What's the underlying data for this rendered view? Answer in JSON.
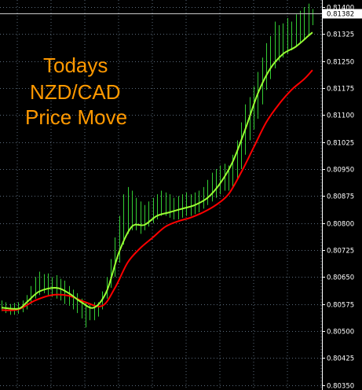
{
  "chart_data": {
    "type": "line",
    "title_lines": [
      "Todays",
      "NZD/CAD",
      "Price Move"
    ],
    "y_ticks": [
      "0.81400",
      "0.81325",
      "0.81250",
      "0.81175",
      "0.81100",
      "0.81025",
      "0.80950",
      "0.80875",
      "0.80800",
      "0.80725",
      "0.80650",
      "0.80575",
      "0.80500",
      "0.80425",
      "0.80350"
    ],
    "ylim": [
      0.80336,
      0.8142
    ],
    "current_price": "0.81382",
    "grid": true,
    "colors": {
      "bars": "#33cc33",
      "fast_ma": "#99ff33",
      "slow_ma": "#ff0000",
      "grid": "#5a6a7a",
      "title": "#ff9900",
      "current_line": "#c8c8c8"
    },
    "bar_count": 75,
    "bars": [
      {
        "h": 0.80585,
        "l": 0.80555
      },
      {
        "h": 0.8058,
        "l": 0.8055
      },
      {
        "h": 0.80575,
        "l": 0.80545
      },
      {
        "h": 0.80578,
        "l": 0.80545
      },
      {
        "h": 0.8058,
        "l": 0.80548
      },
      {
        "h": 0.80585,
        "l": 0.80552
      },
      {
        "h": 0.806,
        "l": 0.8056
      },
      {
        "h": 0.80625,
        "l": 0.80575
      },
      {
        "h": 0.8065,
        "l": 0.8059
      },
      {
        "h": 0.80665,
        "l": 0.806
      },
      {
        "h": 0.80658,
        "l": 0.80605
      },
      {
        "h": 0.8066,
        "l": 0.806
      },
      {
        "h": 0.8065,
        "l": 0.80595
      },
      {
        "h": 0.80655,
        "l": 0.8059
      },
      {
        "h": 0.80645,
        "l": 0.80585
      },
      {
        "h": 0.8064,
        "l": 0.80575
      },
      {
        "h": 0.80625,
        "l": 0.8057
      },
      {
        "h": 0.80615,
        "l": 0.8056
      },
      {
        "h": 0.80605,
        "l": 0.8055
      },
      {
        "h": 0.8059,
        "l": 0.80535
      },
      {
        "h": 0.8058,
        "l": 0.8051
      },
      {
        "h": 0.80575,
        "l": 0.8053
      },
      {
        "h": 0.8058,
        "l": 0.8053
      },
      {
        "h": 0.8058,
        "l": 0.8054
      },
      {
        "h": 0.8061,
        "l": 0.8056
      },
      {
        "h": 0.8065,
        "l": 0.8059
      },
      {
        "h": 0.807,
        "l": 0.8062
      },
      {
        "h": 0.8076,
        "l": 0.8065
      },
      {
        "h": 0.8082,
        "l": 0.8069
      },
      {
        "h": 0.8088,
        "l": 0.8074
      },
      {
        "h": 0.809,
        "l": 0.8077
      },
      {
        "h": 0.8089,
        "l": 0.8078
      },
      {
        "h": 0.8087,
        "l": 0.8078
      },
      {
        "h": 0.8086,
        "l": 0.8077
      },
      {
        "h": 0.8085,
        "l": 0.8078
      },
      {
        "h": 0.8086,
        "l": 0.8079
      },
      {
        "h": 0.8087,
        "l": 0.808
      },
      {
        "h": 0.8088,
        "l": 0.8081
      },
      {
        "h": 0.8089,
        "l": 0.8082
      },
      {
        "h": 0.80885,
        "l": 0.8082
      },
      {
        "h": 0.8088,
        "l": 0.80815
      },
      {
        "h": 0.8087,
        "l": 0.8081
      },
      {
        "h": 0.80875,
        "l": 0.8081
      },
      {
        "h": 0.8088,
        "l": 0.80815
      },
      {
        "h": 0.80885,
        "l": 0.8082
      },
      {
        "h": 0.8088,
        "l": 0.8082
      },
      {
        "h": 0.80885,
        "l": 0.80825
      },
      {
        "h": 0.8089,
        "l": 0.8083
      },
      {
        "h": 0.809,
        "l": 0.8084
      },
      {
        "h": 0.8092,
        "l": 0.8085
      },
      {
        "h": 0.8094,
        "l": 0.8086
      },
      {
        "h": 0.8095,
        "l": 0.8087
      },
      {
        "h": 0.8096,
        "l": 0.8088
      },
      {
        "h": 0.80965,
        "l": 0.8089
      },
      {
        "h": 0.8096,
        "l": 0.8089
      },
      {
        "h": 0.8099,
        "l": 0.809
      },
      {
        "h": 0.8103,
        "l": 0.8092
      },
      {
        "h": 0.8108,
        "l": 0.8095
      },
      {
        "h": 0.8113,
        "l": 0.8099
      },
      {
        "h": 0.8115,
        "l": 0.8103
      },
      {
        "h": 0.8118,
        "l": 0.8106
      },
      {
        "h": 0.8122,
        "l": 0.8109
      },
      {
        "h": 0.8126,
        "l": 0.8113
      },
      {
        "h": 0.813,
        "l": 0.8117
      },
      {
        "h": 0.8132,
        "l": 0.812
      },
      {
        "h": 0.8136,
        "l": 0.8123
      },
      {
        "h": 0.8135,
        "l": 0.8125
      },
      {
        "h": 0.81355,
        "l": 0.8126
      },
      {
        "h": 0.8137,
        "l": 0.8127
      },
      {
        "h": 0.8136,
        "l": 0.8128
      },
      {
        "h": 0.8138,
        "l": 0.8129
      },
      {
        "h": 0.8139,
        "l": 0.813
      },
      {
        "h": 0.814,
        "l": 0.8131
      },
      {
        "h": 0.8141,
        "l": 0.8132
      },
      {
        "h": 0.81395,
        "l": 0.8135
      }
    ],
    "fast_ma": [
      {
        "i": 0,
        "v": 0.80565
      },
      {
        "i": 4,
        "v": 0.80562
      },
      {
        "i": 6,
        "v": 0.8058
      },
      {
        "i": 9,
        "v": 0.8061
      },
      {
        "i": 13,
        "v": 0.8062
      },
      {
        "i": 16,
        "v": 0.80605
      },
      {
        "i": 19,
        "v": 0.8058
      },
      {
        "i": 22,
        "v": 0.80565
      },
      {
        "i": 25,
        "v": 0.8061
      },
      {
        "i": 28,
        "v": 0.8072
      },
      {
        "i": 31,
        "v": 0.8079
      },
      {
        "i": 34,
        "v": 0.80795
      },
      {
        "i": 37,
        "v": 0.8082
      },
      {
        "i": 40,
        "v": 0.8083
      },
      {
        "i": 43,
        "v": 0.8084
      },
      {
        "i": 46,
        "v": 0.8085
      },
      {
        "i": 49,
        "v": 0.8087
      },
      {
        "i": 52,
        "v": 0.8091
      },
      {
        "i": 55,
        "v": 0.8097
      },
      {
        "i": 58,
        "v": 0.8106
      },
      {
        "i": 61,
        "v": 0.8116
      },
      {
        "i": 64,
        "v": 0.8123
      },
      {
        "i": 67,
        "v": 0.8127
      },
      {
        "i": 70,
        "v": 0.8129
      },
      {
        "i": 73,
        "v": 0.8132
      },
      {
        "i": 74,
        "v": 0.8133
      }
    ],
    "slow_ma": [
      {
        "i": 0,
        "v": 0.80558
      },
      {
        "i": 4,
        "v": 0.8056
      },
      {
        "i": 8,
        "v": 0.80585
      },
      {
        "i": 12,
        "v": 0.806
      },
      {
        "i": 16,
        "v": 0.80598
      },
      {
        "i": 20,
        "v": 0.8058
      },
      {
        "i": 24,
        "v": 0.8057
      },
      {
        "i": 27,
        "v": 0.8062
      },
      {
        "i": 30,
        "v": 0.8069
      },
      {
        "i": 33,
        "v": 0.8073
      },
      {
        "i": 36,
        "v": 0.8076
      },
      {
        "i": 39,
        "v": 0.8079
      },
      {
        "i": 42,
        "v": 0.80805
      },
      {
        "i": 45,
        "v": 0.80815
      },
      {
        "i": 48,
        "v": 0.8083
      },
      {
        "i": 51,
        "v": 0.8085
      },
      {
        "i": 54,
        "v": 0.8088
      },
      {
        "i": 57,
        "v": 0.8094
      },
      {
        "i": 60,
        "v": 0.8101
      },
      {
        "i": 63,
        "v": 0.8108
      },
      {
        "i": 66,
        "v": 0.8113
      },
      {
        "i": 69,
        "v": 0.8117
      },
      {
        "i": 72,
        "v": 0.812
      },
      {
        "i": 74,
        "v": 0.81225
      }
    ]
  }
}
